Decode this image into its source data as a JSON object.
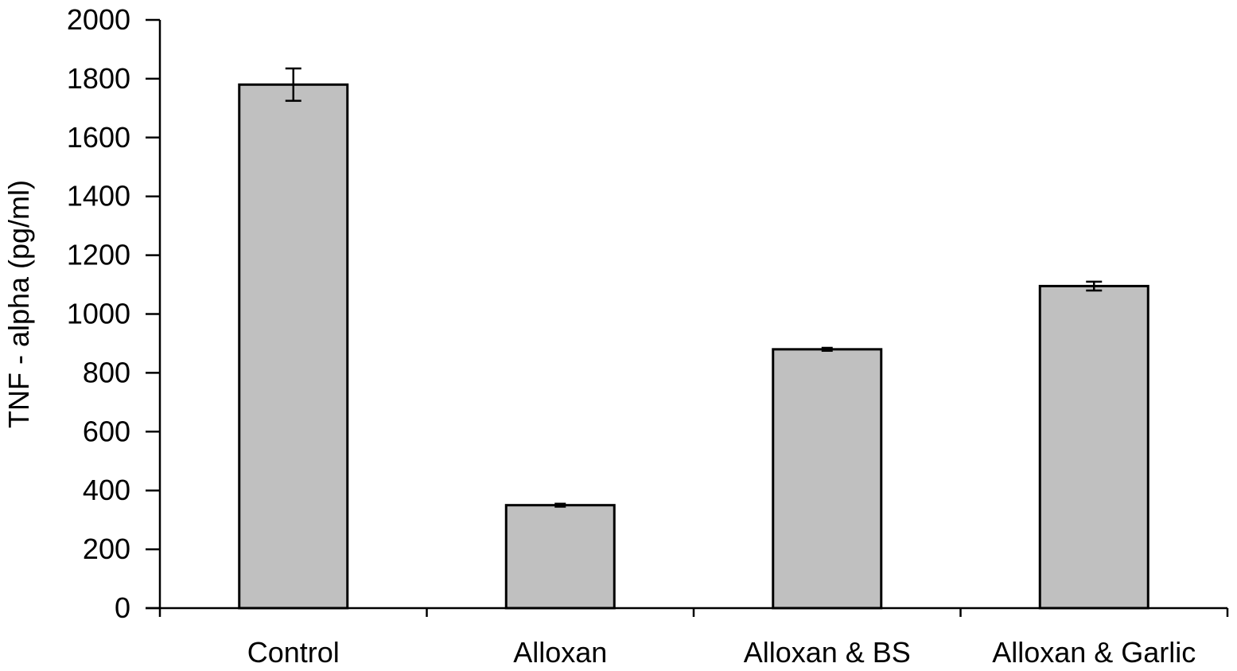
{
  "chart_data": {
    "type": "bar",
    "title": "",
    "xlabel": "",
    "ylabel": "TNF - alpha (pg/ml)",
    "categories": [
      "Control",
      "Alloxan",
      "Alloxan & BS",
      "Alloxan & Garlic"
    ],
    "values": [
      1780,
      350,
      880,
      1095
    ],
    "errors": [
      55,
      5,
      5,
      15
    ],
    "ylim": [
      0,
      2000
    ],
    "yticks": [
      "0",
      "200",
      "400",
      "600",
      "800",
      "1000",
      "1200",
      "1400",
      "1600",
      "1800",
      "2000"
    ],
    "grid": false,
    "legend": "none"
  },
  "colors": {
    "bar_fill": "#c0c0c0",
    "bar_stroke": "#000000",
    "axis": "#000000",
    "background": "#ffffff"
  }
}
